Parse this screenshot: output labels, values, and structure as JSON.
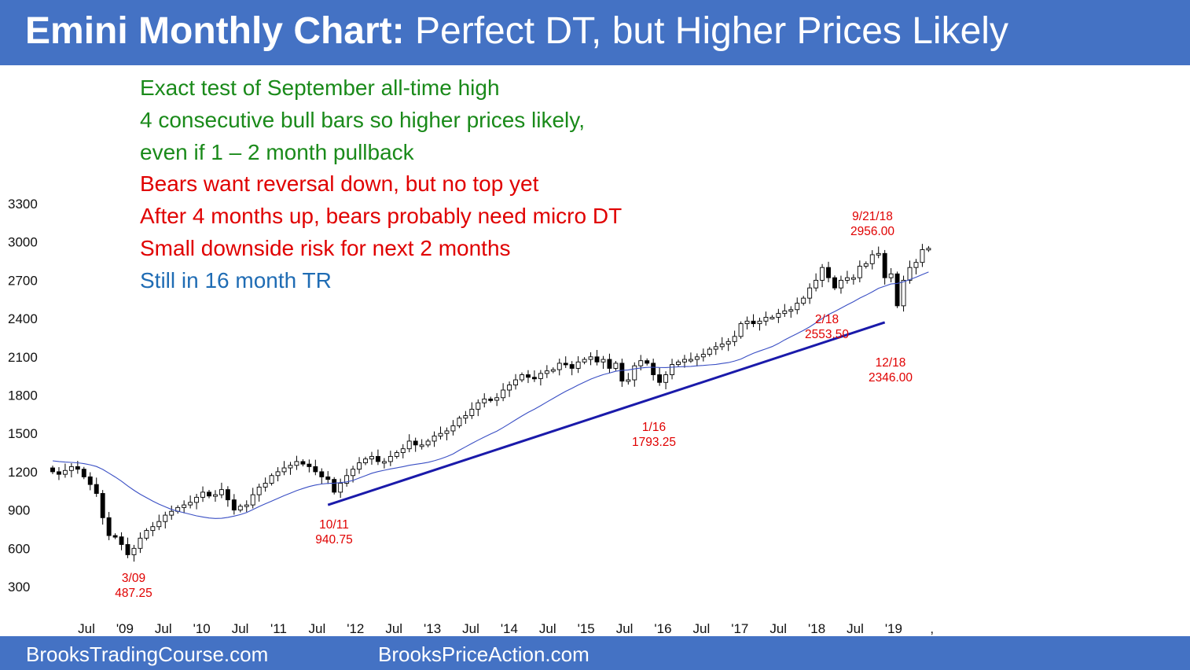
{
  "header": {
    "title_bold": "Emini Monthly Chart:",
    "title_rest": " Perfect DT, but Higher Prices Likely",
    "bg_color": "#4472c4"
  },
  "notes": [
    {
      "text": "Exact test of September all-time high",
      "color": "#1a8a1a"
    },
    {
      "text": "4 consecutive bull bars so higher prices likely,",
      "color": "#1a8a1a"
    },
    {
      "text": "even if 1 – 2 month pullback",
      "color": "#1a8a1a"
    },
    {
      "text": "Bears want reversal down, but no top yet",
      "color": "#e00000"
    },
    {
      "text": "After 4 months up, bears probably need micro DT",
      "color": "#e00000"
    },
    {
      "text": "Small downside risk for next 2 months",
      "color": "#e00000"
    },
    {
      "text": "Still in 16 month TR",
      "color": "#1f6cb4"
    }
  ],
  "footer": {
    "left": "BrooksTradingCourse.com",
    "right": "BrooksPriceAction.com"
  },
  "chart_data": {
    "type": "candlestick",
    "y_ticks": [
      300,
      600,
      900,
      1200,
      1500,
      1800,
      2100,
      2400,
      2700,
      3000,
      3300
    ],
    "x_ticks": [
      "Jul",
      "'09",
      "Jul",
      "'10",
      "Jul",
      "'11",
      "Jul",
      "'12",
      "Jul",
      "'13",
      "Jul",
      "'14",
      "Jul",
      "'15",
      "Jul",
      "'16",
      "Jul",
      "'17",
      "Jul",
      "'18",
      "Jul",
      "'19",
      ","
    ],
    "bull_color": "#ffffff",
    "bear_color": "#000000",
    "ma_color": "#3a4fc4",
    "trendline_color": "#1a1aaa",
    "annotation_color": "#e00000",
    "close": [
      1200,
      1180,
      1210,
      1240,
      1220,
      1160,
      1100,
      1030,
      840,
      700,
      690,
      630,
      550,
      600,
      680,
      740,
      770,
      810,
      860,
      890,
      920,
      940,
      960,
      1000,
      1040,
      1010,
      1020,
      1060,
      980,
      900,
      930,
      940,
      1020,
      1080,
      1110,
      1170,
      1200,
      1230,
      1250,
      1280,
      1260,
      1240,
      1200,
      1160,
      1140,
      1040,
      1110,
      1170,
      1220,
      1270,
      1300,
      1320,
      1280,
      1280,
      1320,
      1350,
      1380,
      1440,
      1410,
      1410,
      1440,
      1480,
      1500,
      1520,
      1560,
      1620,
      1640,
      1690,
      1740,
      1770,
      1760,
      1780,
      1840,
      1880,
      1920,
      1960,
      1940,
      1930,
      1970,
      1990,
      2000,
      2050,
      2040,
      2010,
      2060,
      2080,
      2100,
      2060,
      2080,
      2010,
      2050,
      1910,
      1920,
      2030,
      2070,
      2050,
      1960,
      1900,
      1960,
      2040,
      2060,
      2080,
      2080,
      2100,
      2120,
      2160,
      2180,
      2200,
      2220,
      2260,
      2360,
      2380,
      2360,
      2380,
      2410,
      2410,
      2440,
      2460,
      2470,
      2520,
      2560,
      2640,
      2700,
      2800,
      2720,
      2640,
      2700,
      2720,
      2720,
      2810,
      2830,
      2900,
      2910,
      2720,
      2750,
      2500,
      2700,
      2800,
      2840,
      2940,
      2950
    ],
    "annotations": [
      {
        "date": "3/09",
        "value": "487.25"
      },
      {
        "date": "10/11",
        "value": "940.75"
      },
      {
        "date": "1/16",
        "value": "1793.25"
      },
      {
        "date": "2/18",
        "value": "2553.50"
      },
      {
        "date": "9/21/18",
        "value": "2956.00"
      },
      {
        "date": "12/18",
        "value": "2346.00"
      }
    ],
    "trendline": [
      {
        "bar": 44,
        "price": 940
      },
      {
        "bar": 133,
        "price": 2370
      }
    ]
  }
}
